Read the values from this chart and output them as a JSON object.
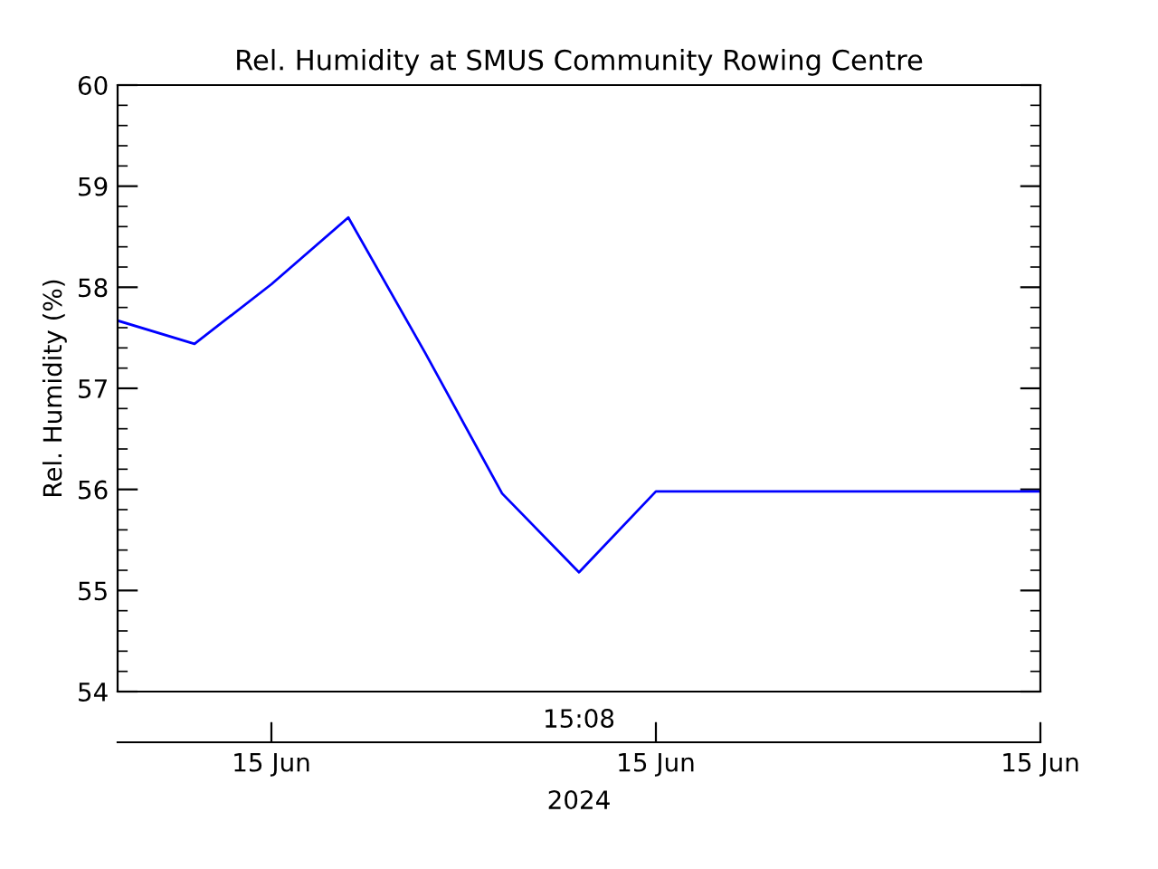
{
  "chart_data": {
    "type": "line",
    "title": "Rel. Humidity at SMUS Community Rowing Centre",
    "ylabel": "Rel. Humidity (%)",
    "categories": [
      null,
      null,
      "15 Jun",
      null,
      null,
      null,
      null,
      "15 Jun",
      null,
      null,
      null,
      null,
      "15 Jun"
    ],
    "series": [
      {
        "color": "#0000ff",
        "values": [
          57.67,
          57.44,
          58.03,
          58.69,
          57.35,
          55.96,
          55.18,
          55.98,
          55.98,
          55.98,
          55.98,
          55.98,
          55.98
        ]
      }
    ],
    "ylim": [
      54,
      60
    ],
    "yticks": [
      54,
      55,
      56,
      57,
      58,
      59,
      60
    ],
    "annotations": [
      "15:08",
      "2024"
    ],
    "grid": false,
    "marker": "none",
    "line_style": "solid"
  }
}
